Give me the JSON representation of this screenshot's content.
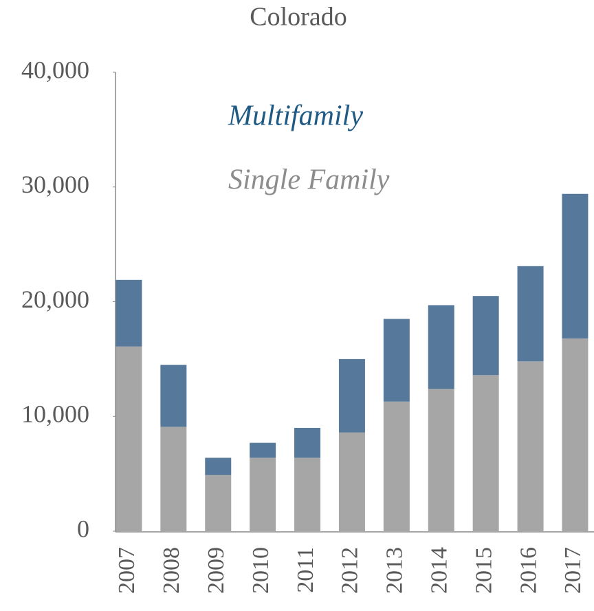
{
  "chart_data": {
    "type": "stacked_bar",
    "title": "Colorado",
    "categories": [
      "2007",
      "2008",
      "2009",
      "2010",
      "2011",
      "2012",
      "2013",
      "2014",
      "2015",
      "2016",
      "2017"
    ],
    "series": [
      {
        "name": "Single Family",
        "color": "#a6a6a6",
        "label_color": "#8c8c8c",
        "values": [
          16100,
          9100,
          4900,
          6400,
          6400,
          8600,
          11300,
          12400,
          13600,
          14800,
          16800
        ]
      },
      {
        "name": "Multifamily",
        "color": "#56799b",
        "label_color": "#1f5a85",
        "values": [
          5800,
          5400,
          1500,
          1300,
          2600,
          6400,
          7200,
          7300,
          6900,
          8300,
          12600
        ]
      }
    ],
    "ylim": [
      0,
      40000
    ],
    "yticks": [
      0,
      {
        "value": 10000,
        "label": "10,000"
      },
      {
        "value": 20000,
        "label": "20,000"
      },
      {
        "value": 30000,
        "label": "30,000"
      },
      {
        "value": 40000,
        "label": "40,000"
      }
    ],
    "grid": false
  }
}
